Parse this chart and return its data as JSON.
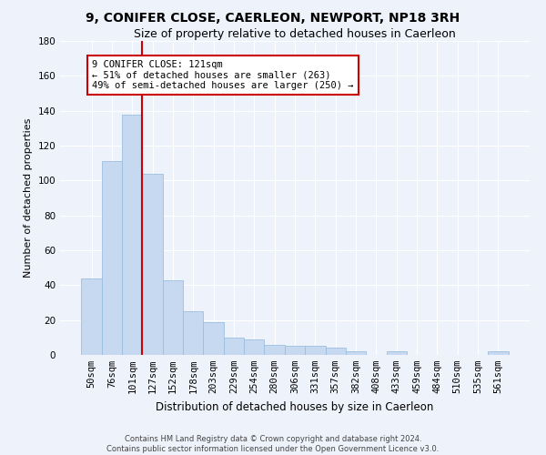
{
  "title": "9, CONIFER CLOSE, CAERLEON, NEWPORT, NP18 3RH",
  "subtitle": "Size of property relative to detached houses in Caerleon",
  "xlabel": "Distribution of detached houses by size in Caerleon",
  "ylabel": "Number of detached properties",
  "bar_labels": [
    "50sqm",
    "76sqm",
    "101sqm",
    "127sqm",
    "152sqm",
    "178sqm",
    "203sqm",
    "229sqm",
    "254sqm",
    "280sqm",
    "306sqm",
    "331sqm",
    "357sqm",
    "382sqm",
    "408sqm",
    "433sqm",
    "459sqm",
    "484sqm",
    "510sqm",
    "535sqm",
    "561sqm"
  ],
  "bar_values": [
    44,
    111,
    138,
    104,
    43,
    25,
    19,
    10,
    9,
    6,
    5,
    5,
    4,
    2,
    0,
    2,
    0,
    0,
    0,
    0,
    2
  ],
  "bar_color": "#c6d9f1",
  "bar_edgecolor": "#9bbfe0",
  "vline_x_index": 2,
  "vline_color": "#cc0000",
  "annotation_text": "9 CONIFER CLOSE: 121sqm\n← 51% of detached houses are smaller (263)\n49% of semi-detached houses are larger (250) →",
  "annotation_box_facecolor": "#ffffff",
  "annotation_box_edgecolor": "#cc0000",
  "ylim": [
    0,
    180
  ],
  "yticks": [
    0,
    20,
    40,
    60,
    80,
    100,
    120,
    140,
    160,
    180
  ],
  "background_color": "#eef2fb",
  "grid_color": "#ffffff",
  "footer_line1": "Contains HM Land Registry data © Crown copyright and database right 2024.",
  "footer_line2": "Contains public sector information licensed under the Open Government Licence v3.0.",
  "title_fontsize": 10,
  "subtitle_fontsize": 9,
  "xlabel_fontsize": 8.5,
  "ylabel_fontsize": 8,
  "tick_fontsize": 7.5,
  "annotation_fontsize": 7.5,
  "footer_fontsize": 6
}
